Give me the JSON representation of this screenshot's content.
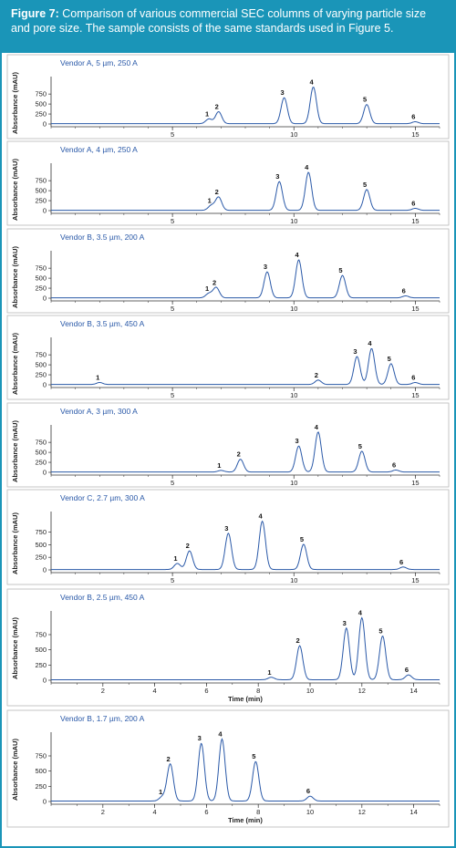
{
  "caption": {
    "figure_label": "Figure 7:",
    "text": "Comparison of various commercial SEC columns of varying particle size and pore size. The sample consists of the same standards used in Figure 5."
  },
  "colors": {
    "frame": "#1a95b8",
    "trace": "#2a59a8",
    "panel_border": "#b8b8b8"
  },
  "chart_data": [
    {
      "type": "line",
      "title": "Vendor A, 5 µm, 250 A",
      "ylabel": "Absorbance (mAU)",
      "xlabel": "",
      "xlim": [
        0,
        16
      ],
      "ylim": [
        0,
        1050
      ],
      "xticks": [
        5,
        10,
        15
      ],
      "yticks": [
        0,
        250,
        500,
        750
      ],
      "peaks": [
        {
          "label": "1",
          "x": 6.5,
          "y": 120
        },
        {
          "label": "2",
          "x": 6.9,
          "y": 300
        },
        {
          "label": "3",
          "x": 9.6,
          "y": 650
        },
        {
          "label": "4",
          "x": 10.8,
          "y": 920
        },
        {
          "label": "5",
          "x": 13.0,
          "y": 480
        },
        {
          "label": "6",
          "x": 15.0,
          "y": 50
        }
      ]
    },
    {
      "type": "line",
      "title": "Vendor A, 4 µm, 250 A",
      "ylabel": "Absorbance (mAU)",
      "xlabel": "",
      "xlim": [
        0,
        16
      ],
      "ylim": [
        0,
        1050
      ],
      "xticks": [
        5,
        10,
        15
      ],
      "yticks": [
        0,
        250,
        500,
        750
      ],
      "peaks": [
        {
          "label": "1",
          "x": 6.6,
          "y": 120
        },
        {
          "label": "2",
          "x": 6.9,
          "y": 330
        },
        {
          "label": "3",
          "x": 9.4,
          "y": 720
        },
        {
          "label": "4",
          "x": 10.6,
          "y": 950
        },
        {
          "label": "5",
          "x": 13.0,
          "y": 520
        },
        {
          "label": "6",
          "x": 15.0,
          "y": 50
        }
      ]
    },
    {
      "type": "line",
      "title": "Vendor B, 3.5 µm, 200 A",
      "ylabel": "Absorbance (mAU)",
      "xlabel": "",
      "xlim": [
        0,
        16
      ],
      "ylim": [
        0,
        1050
      ],
      "xticks": [
        5,
        10,
        15
      ],
      "yticks": [
        0,
        250,
        500,
        750
      ],
      "peaks": [
        {
          "label": "1",
          "x": 6.5,
          "y": 110
        },
        {
          "label": "2",
          "x": 6.8,
          "y": 260
        },
        {
          "label": "3",
          "x": 8.9,
          "y": 650
        },
        {
          "label": "4",
          "x": 10.2,
          "y": 950
        },
        {
          "label": "5",
          "x": 12.0,
          "y": 560
        },
        {
          "label": "6",
          "x": 14.6,
          "y": 50
        }
      ]
    },
    {
      "type": "line",
      "title": "Vendor B, 3.5 µm, 450 A",
      "ylabel": "Absorbance (mAU)",
      "xlabel": "",
      "xlim": [
        0,
        16
      ],
      "ylim": [
        0,
        1050
      ],
      "xticks": [
        5,
        10,
        15
      ],
      "yticks": [
        0,
        250,
        500,
        750
      ],
      "peaks": [
        {
          "label": "1",
          "x": 2.0,
          "y": 50
        },
        {
          "label": "2",
          "x": 11.0,
          "y": 110
        },
        {
          "label": "3",
          "x": 12.6,
          "y": 700
        },
        {
          "label": "4",
          "x": 13.2,
          "y": 900
        },
        {
          "label": "5",
          "x": 14.0,
          "y": 520
        },
        {
          "label": "6",
          "x": 15.0,
          "y": 50
        }
      ]
    },
    {
      "type": "line",
      "title": "Vendor A, 3 µm, 300 A",
      "ylabel": "Absorbance (mAU)",
      "xlabel": "",
      "xlim": [
        0,
        16
      ],
      "ylim": [
        0,
        1050
      ],
      "xticks": [
        5,
        10,
        15
      ],
      "yticks": [
        0,
        250,
        500,
        750
      ],
      "peaks": [
        {
          "label": "1",
          "x": 7.0,
          "y": 40
        },
        {
          "label": "2",
          "x": 7.8,
          "y": 320
        },
        {
          "label": "3",
          "x": 10.2,
          "y": 650
        },
        {
          "label": "4",
          "x": 11.0,
          "y": 1000
        },
        {
          "label": "5",
          "x": 12.8,
          "y": 520
        },
        {
          "label": "6",
          "x": 14.2,
          "y": 50
        }
      ]
    },
    {
      "type": "line",
      "title": "Vendor C, 2.7 µm, 300 A",
      "ylabel": "Absorbance (mAU)",
      "xlabel": "",
      "xlim": [
        0,
        16
      ],
      "ylim": [
        0,
        1050
      ],
      "xticks": [
        5,
        10,
        15
      ],
      "yticks": [
        0,
        250,
        500,
        750
      ],
      "peaks": [
        {
          "label": "1",
          "x": 5.2,
          "y": 120
        },
        {
          "label": "2",
          "x": 5.7,
          "y": 370
        },
        {
          "label": "3",
          "x": 7.3,
          "y": 720
        },
        {
          "label": "4",
          "x": 8.7,
          "y": 960
        },
        {
          "label": "5",
          "x": 10.4,
          "y": 500
        },
        {
          "label": "6",
          "x": 14.5,
          "y": 50
        }
      ]
    },
    {
      "type": "line",
      "title": "Vendor B, 2.5 µm, 450 A",
      "ylabel": "Absorbance (mAU)",
      "xlabel": "Time (min)",
      "xlim": [
        0,
        15
      ],
      "ylim": [
        0,
        1050
      ],
      "xticks": [
        2,
        4,
        6,
        8,
        10,
        12,
        14
      ],
      "yticks": [
        0,
        250,
        500,
        750
      ],
      "peaks": [
        {
          "label": "1",
          "x": 8.5,
          "y": 40
        },
        {
          "label": "2",
          "x": 9.6,
          "y": 560
        },
        {
          "label": "3",
          "x": 11.4,
          "y": 850
        },
        {
          "label": "4",
          "x": 12.0,
          "y": 1020
        },
        {
          "label": "5",
          "x": 12.8,
          "y": 720
        },
        {
          "label": "6",
          "x": 13.8,
          "y": 80
        }
      ]
    },
    {
      "type": "line",
      "title": "Vendor B, 1.7 µm, 200 A",
      "ylabel": "Absorbance (mAU)",
      "xlabel": "Time (min)",
      "xlim": [
        0,
        15
      ],
      "ylim": [
        0,
        1050
      ],
      "xticks": [
        2,
        4,
        6,
        8,
        10,
        12,
        14
      ],
      "yticks": [
        0,
        250,
        500,
        750
      ],
      "peaks": [
        {
          "label": "1",
          "x": 4.3,
          "y": 70
        },
        {
          "label": "2",
          "x": 4.6,
          "y": 610
        },
        {
          "label": "3",
          "x": 5.8,
          "y": 950
        },
        {
          "label": "4",
          "x": 6.6,
          "y": 1020
        },
        {
          "label": "5",
          "x": 7.9,
          "y": 650
        },
        {
          "label": "6",
          "x": 10.0,
          "y": 80
        }
      ]
    }
  ]
}
